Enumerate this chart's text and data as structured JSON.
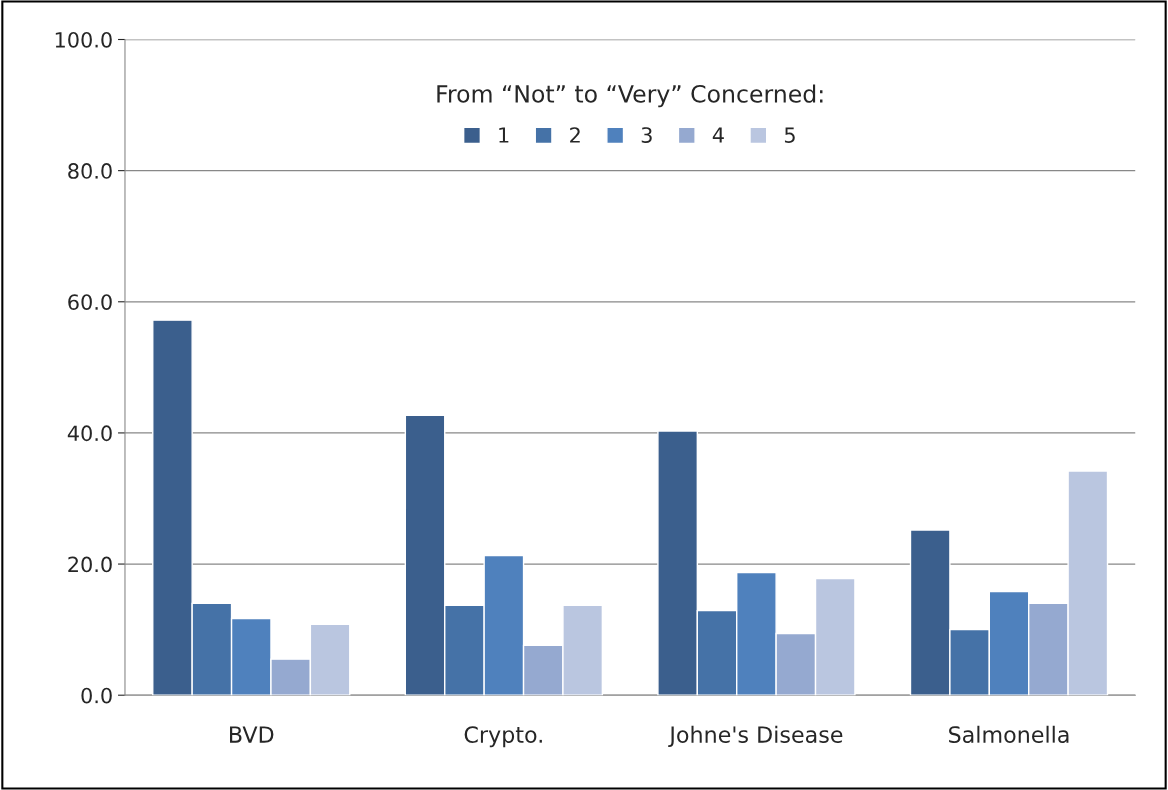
{
  "chart_data": {
    "type": "bar",
    "categories": [
      "BVD",
      "Crypto.",
      "Johne's Disease",
      "Salmonella"
    ],
    "legend_title": "From “Not” to “Very” Concerned:",
    "series": [
      {
        "name": "1",
        "color": "#3b5f8d",
        "values": [
          57.2,
          42.7,
          40.3,
          25.2
        ]
      },
      {
        "name": "2",
        "color": "#4572a7",
        "values": [
          14.0,
          13.7,
          12.9,
          10.0
        ]
      },
      {
        "name": "3",
        "color": "#4f81bd",
        "values": [
          11.7,
          21.3,
          18.7,
          15.8
        ]
      },
      {
        "name": "4",
        "color": "#95a9d0",
        "values": [
          5.5,
          7.6,
          9.4,
          14.0
        ]
      },
      {
        "name": "5",
        "color": "#bac6e0",
        "values": [
          10.8,
          13.7,
          17.8,
          34.2
        ]
      }
    ],
    "ylim": [
      0,
      100
    ],
    "yticks": [
      {
        "value": 0,
        "label": "0.0"
      },
      {
        "value": 20,
        "label": "20.0"
      },
      {
        "value": 40,
        "label": "40.0"
      },
      {
        "value": 60,
        "label": "60.0"
      },
      {
        "value": 80,
        "label": "80.0"
      },
      {
        "value": 100,
        "label": "100.0"
      }
    ],
    "grid": "y",
    "legend": "top"
  }
}
